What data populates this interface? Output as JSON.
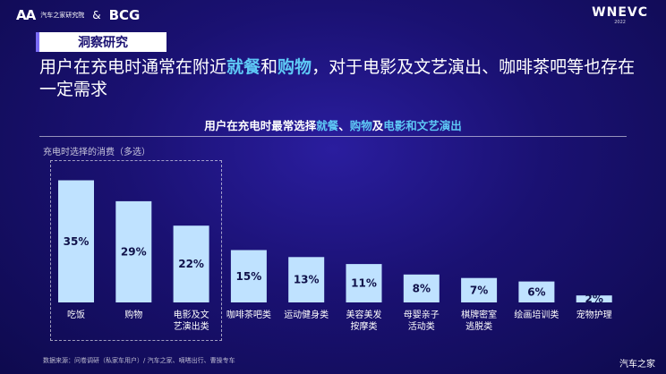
{
  "logos": {
    "autohome_mark": "AA",
    "autohome_name": "汽车之家研究院",
    "amp": "&",
    "bcg": "BCG",
    "wnevc": "WNEVC",
    "wnevc_sub": "2022"
  },
  "badge": "洞察研究",
  "headline": {
    "p1": "用户在充电时通常在附近",
    "h1": "就餐",
    "p2": "和",
    "h2": "购物",
    "p3": "，对于电影及文艺演出、咖啡茶吧等也存在一定需求"
  },
  "chart_title": {
    "p1": "用户在充电时最常选择",
    "h1": "就餐",
    "p2": "、",
    "h2": "购物",
    "p3": "及",
    "h3": "电影和文艺演出"
  },
  "chart_data": {
    "type": "bar",
    "subtitle": "充电时选择的消费（多选）",
    "categories": [
      [
        "吃饭"
      ],
      [
        "购物"
      ],
      [
        "电影及文",
        "艺演出类"
      ],
      [
        "咖啡茶吧类"
      ],
      [
        "运动健身类"
      ],
      [
        "美容美发",
        "按摩类"
      ],
      [
        "母婴亲子",
        "活动类"
      ],
      [
        "棋牌密室",
        "逃脱类"
      ],
      [
        "绘画培训类"
      ],
      [
        "宠物护理"
      ]
    ],
    "values": [
      35,
      29,
      22,
      15,
      13,
      11,
      8,
      7,
      6,
      2
    ],
    "value_labels": [
      "35%",
      "29%",
      "22%",
      "15%",
      "13%",
      "11%",
      "8%",
      "7%",
      "6%",
      "2%"
    ],
    "bar_color": "#bfe2ff",
    "highlighted_count": 3
  },
  "source": "数据来源：问卷调研（私家车用户）/ 汽车之家、嘀嗒出行、曹操专车",
  "watermark": "汽车之家"
}
